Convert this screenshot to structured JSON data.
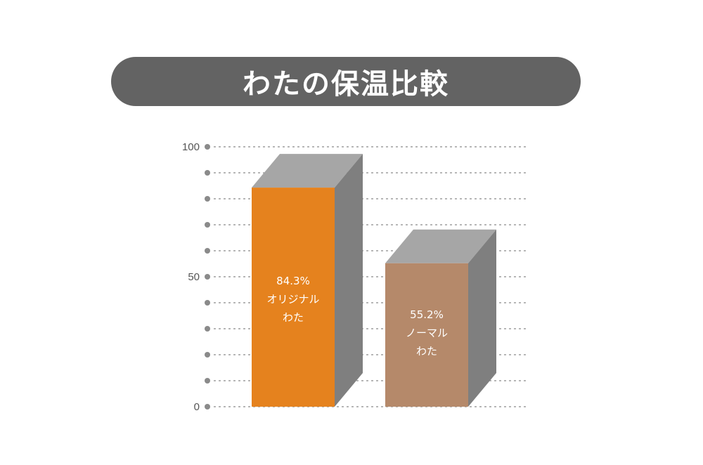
{
  "title": "わたの保温比較",
  "colors": {
    "banner": "#636363",
    "grid_dot": "#8a8a8a",
    "bar_top": "#a6a6a6",
    "bar_side": "#7f7f7f"
  },
  "chart_data": {
    "type": "bar",
    "categories": [
      "オリジナル\nわた",
      "ノーマル\nわた"
    ],
    "values": [
      84.3,
      55.2
    ],
    "value_labels": [
      "84.3%",
      "55.2%"
    ],
    "bar_colors": [
      "#e5821e",
      "#b5896a"
    ],
    "ylim": [
      0,
      100
    ],
    "y_ticks": [
      0,
      50,
      100
    ],
    "y_minor_step": 10,
    "grid": true,
    "title": "わたの保温比較",
    "xlabel": "",
    "ylabel": ""
  }
}
